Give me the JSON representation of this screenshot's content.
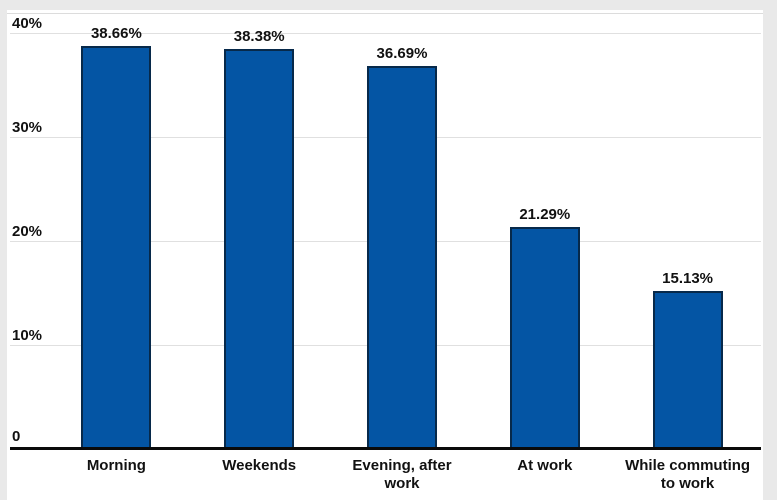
{
  "page": {
    "frame_background": "#e9e9e9",
    "card_background": "#ffffff"
  },
  "chart_data": {
    "type": "bar",
    "categories": [
      "Morning",
      "Weekends",
      "Evening, after\nwork",
      "At work",
      "While commuting\nto work"
    ],
    "values": [
      38.66,
      38.38,
      36.69,
      21.29,
      15.13
    ],
    "value_labels": [
      "38.66%",
      "38.38%",
      "36.69%",
      "21.29%",
      "15.13%"
    ],
    "title": "",
    "xlabel": "",
    "ylabel": "",
    "ylim": [
      0,
      40
    ],
    "yticks": [
      0,
      10,
      20,
      30,
      40
    ],
    "ytick_labels": [
      "0",
      "10%",
      "20%",
      "30%",
      "40%"
    ],
    "grid": true,
    "legend": false,
    "bar_fill_color": "#0455a4",
    "bar_border_color": "#07294a",
    "gridline_color": "#e0e0e0",
    "axis_color": "#0a0a0a",
    "text_color": "#111111"
  }
}
